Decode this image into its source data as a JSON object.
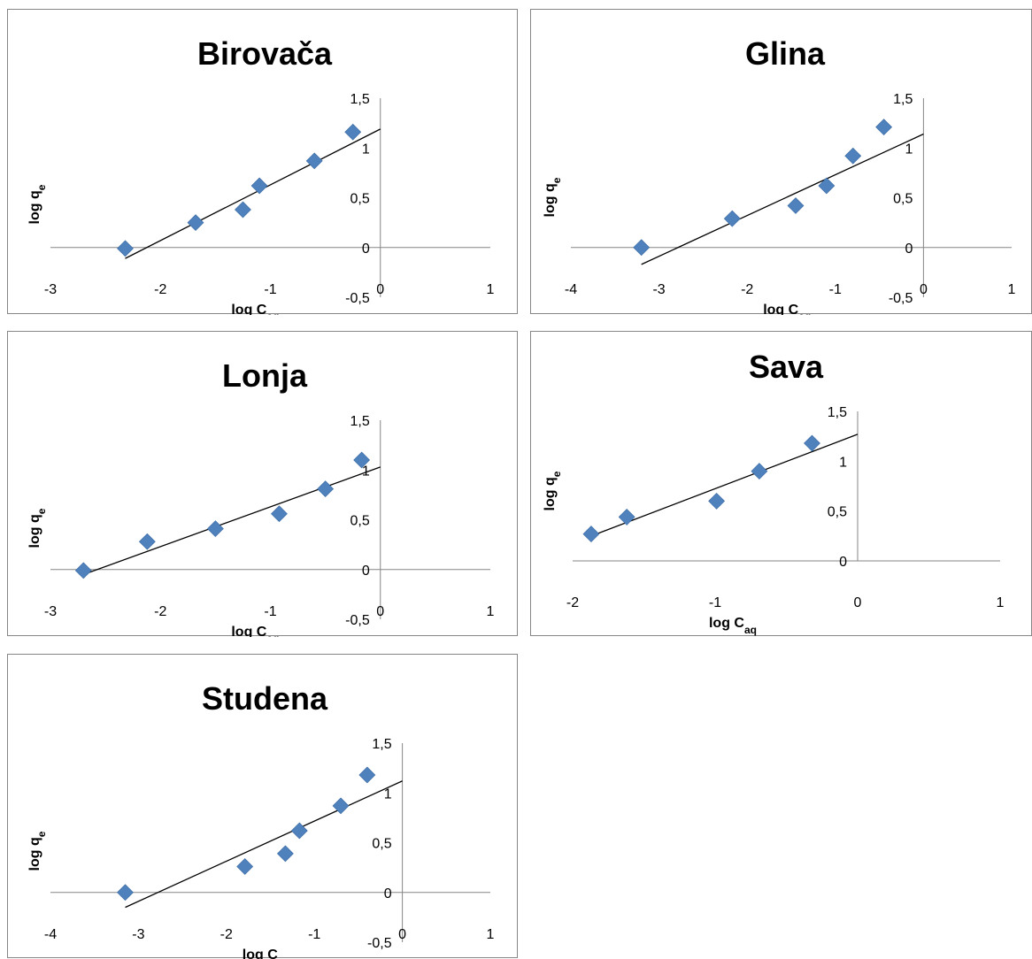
{
  "chart_data": [
    {
      "type": "scatter",
      "title": "Birovača",
      "xlabel": "log C",
      "xlabel_sub": "aq",
      "ylabel": "log q",
      "ylabel_sub": "e",
      "xlim": [
        -3,
        1
      ],
      "ylim": [
        -0.5,
        1.5
      ],
      "xticks": [
        "-3",
        "-2",
        "-1",
        "0",
        "1"
      ],
      "yticks": [
        "-0,5",
        "0",
        "0,5",
        "1",
        "1,5"
      ],
      "grid": false,
      "points": [
        {
          "x": -2.32,
          "y": -0.01
        },
        {
          "x": -1.68,
          "y": 0.25
        },
        {
          "x": -1.25,
          "y": 0.38
        },
        {
          "x": -1.1,
          "y": 0.62
        },
        {
          "x": -0.6,
          "y": 0.87
        },
        {
          "x": -0.25,
          "y": 1.16
        }
      ],
      "trendline": {
        "x": [
          -2.32,
          0
        ],
        "y": [
          -0.11,
          1.19
        ]
      }
    },
    {
      "type": "scatter",
      "title": "Glina",
      "xlabel": "log C",
      "xlabel_sub": "aq",
      "ylabel": "log q",
      "ylabel_sub": "e",
      "xlim": [
        -4,
        1
      ],
      "ylim": [
        -0.5,
        1.5
      ],
      "xticks": [
        "-4",
        "-3",
        "-2",
        "-1",
        "0",
        "1"
      ],
      "yticks": [
        "-0,5",
        "0",
        "0,5",
        "1",
        "1,5"
      ],
      "grid": false,
      "points": [
        {
          "x": -3.2,
          "y": 0.0
        },
        {
          "x": -2.17,
          "y": 0.29
        },
        {
          "x": -1.45,
          "y": 0.42
        },
        {
          "x": -1.1,
          "y": 0.62
        },
        {
          "x": -0.8,
          "y": 0.92
        },
        {
          "x": -0.45,
          "y": 1.21
        }
      ],
      "trendline": {
        "x": [
          -3.2,
          0
        ],
        "y": [
          -0.17,
          1.14
        ]
      }
    },
    {
      "type": "scatter",
      "title": "Lonja",
      "xlabel": "log C",
      "xlabel_sub": "aq",
      "ylabel": "log q",
      "ylabel_sub": "e",
      "xlim": [
        -3,
        1
      ],
      "ylim": [
        -0.5,
        1.5
      ],
      "xticks": [
        "-3",
        "-2",
        "-1",
        "0",
        "1"
      ],
      "yticks": [
        "-0,5",
        "0",
        "0,5",
        "1",
        "1,5"
      ],
      "grid": false,
      "points": [
        {
          "x": -2.7,
          "y": -0.01
        },
        {
          "x": -2.12,
          "y": 0.28
        },
        {
          "x": -1.5,
          "y": 0.41
        },
        {
          "x": -0.92,
          "y": 0.56
        },
        {
          "x": -0.5,
          "y": 0.81
        },
        {
          "x": -0.17,
          "y": 1.1
        }
      ],
      "trendline": {
        "x": [
          -2.7,
          0
        ],
        "y": [
          -0.05,
          1.03
        ]
      }
    },
    {
      "type": "scatter",
      "title": "Sava",
      "xlabel": "log C",
      "xlabel_sub": "aq",
      "ylabel": "log q",
      "ylabel_sub": "e",
      "xlim": [
        -2,
        1
      ],
      "ylim": [
        0,
        1.5
      ],
      "xticks": [
        "-2",
        "-1",
        "0",
        "1"
      ],
      "yticks": [
        "0",
        "0,5",
        "1",
        "1,5"
      ],
      "grid": false,
      "points": [
        {
          "x": -1.87,
          "y": 0.27
        },
        {
          "x": -1.62,
          "y": 0.44
        },
        {
          "x": -0.99,
          "y": 0.6
        },
        {
          "x": -0.69,
          "y": 0.9
        },
        {
          "x": -0.32,
          "y": 1.18
        }
      ],
      "trendline": {
        "x": [
          -1.87,
          0
        ],
        "y": [
          0.25,
          1.27
        ]
      }
    },
    {
      "type": "scatter",
      "title": "Studena",
      "xlabel": "log C",
      "xlabel_sub": "aq",
      "ylabel": "log q",
      "ylabel_sub": "e",
      "xlim": [
        -4,
        1
      ],
      "ylim": [
        -0.5,
        1.5
      ],
      "xticks": [
        "-4",
        "-3",
        "-2",
        "-1",
        "0",
        "1"
      ],
      "yticks": [
        "-0,5",
        "0",
        "0,5",
        "1",
        "1,5"
      ],
      "grid": false,
      "points": [
        {
          "x": -3.15,
          "y": 0.0
        },
        {
          "x": -1.79,
          "y": 0.26
        },
        {
          "x": -1.33,
          "y": 0.39
        },
        {
          "x": -1.17,
          "y": 0.62
        },
        {
          "x": -0.7,
          "y": 0.87
        },
        {
          "x": -0.4,
          "y": 1.18
        }
      ],
      "trendline": {
        "x": [
          -3.15,
          0
        ],
        "y": [
          -0.15,
          1.12
        ]
      }
    }
  ]
}
